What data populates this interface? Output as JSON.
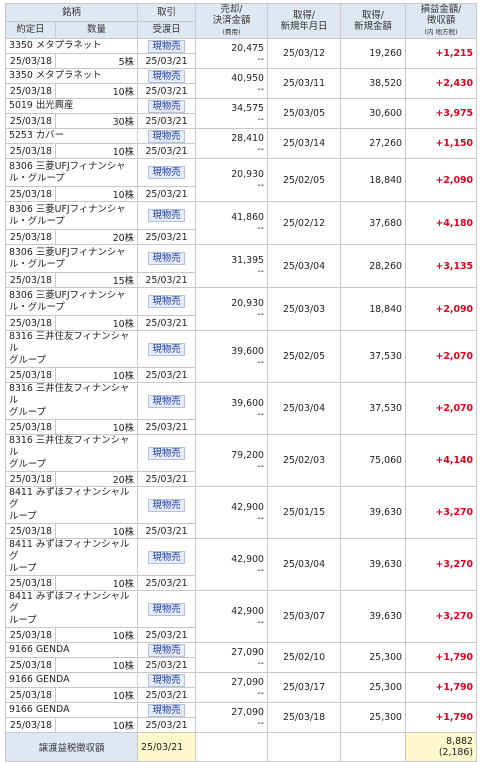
{
  "header": {
    "stock": "銘柄",
    "contract_date": "約定日",
    "qty": "数量",
    "trade_type": "取引",
    "settle_date": "受渡日",
    "sale_amount_1": "売却/",
    "sale_amount_2": "決済金額",
    "sale_amount_3": "(費用)",
    "acq_date_1": "取得/",
    "acq_date_2": "新規年月日",
    "acq_amount_1": "取得/",
    "acq_amount_2": "新規金額",
    "pl_1": "損益金額/",
    "pl_2": "徴収額",
    "pl_3": "(内 地方税)"
  },
  "rows": [
    {
      "name": "3350 メタプラネット",
      "contract_date": "25/03/18",
      "qty": "5株",
      "trade": "現物売",
      "settle_date": "25/03/21",
      "sale": "20,475",
      "cost": "--",
      "acq_date": "25/03/12",
      "acq_amount": "19,260",
      "pl": "+1,215"
    },
    {
      "name": "3350 メタプラネット",
      "contract_date": "25/03/18",
      "qty": "10株",
      "trade": "現物売",
      "settle_date": "25/03/21",
      "sale": "40,950",
      "cost": "--",
      "acq_date": "25/03/11",
      "acq_amount": "38,520",
      "pl": "+2,430"
    },
    {
      "name": "5019 出光興産",
      "contract_date": "25/03/18",
      "qty": "30株",
      "trade": "現物売",
      "settle_date": "25/03/21",
      "sale": "34,575",
      "cost": "--",
      "acq_date": "25/03/05",
      "acq_amount": "30,600",
      "pl": "+3,975"
    },
    {
      "name": "5253 カバー",
      "contract_date": "25/03/18",
      "qty": "10株",
      "trade": "現物売",
      "settle_date": "25/03/21",
      "sale": "28,410",
      "cost": "--",
      "acq_date": "25/03/14",
      "acq_amount": "27,260",
      "pl": "+1,150"
    },
    {
      "name": "8306 三菱UFJフィナンシャ",
      "name2": "ル・グループ",
      "contract_date": "25/03/18",
      "qty": "10株",
      "trade": "現物売",
      "settle_date": "25/03/21",
      "sale": "20,930",
      "cost": "--",
      "acq_date": "25/02/05",
      "acq_amount": "18,840",
      "pl": "+2,090"
    },
    {
      "name": "8306 三菱UFJフィナンシャ",
      "name2": "ル・グループ",
      "contract_date": "25/03/18",
      "qty": "20株",
      "trade": "現物売",
      "settle_date": "25/03/21",
      "sale": "41,860",
      "cost": "--",
      "acq_date": "25/02/12",
      "acq_amount": "37,680",
      "pl": "+4,180"
    },
    {
      "name": "8306 三菱UFJフィナンシャ",
      "name2": "ル・グループ",
      "contract_date": "25/03/18",
      "qty": "15株",
      "trade": "現物売",
      "settle_date": "25/03/21",
      "sale": "31,395",
      "cost": "--",
      "acq_date": "25/03/04",
      "acq_amount": "28,260",
      "pl": "+3,135"
    },
    {
      "name": "8306 三菱UFJフィナンシャ",
      "name2": "ル・グループ",
      "contract_date": "25/03/18",
      "qty": "10株",
      "trade": "現物売",
      "settle_date": "25/03/21",
      "sale": "20,930",
      "cost": "--",
      "acq_date": "25/03/03",
      "acq_amount": "18,840",
      "pl": "+2,090"
    },
    {
      "name": "8316 三井住友フィナンシャル",
      "name2": "グループ",
      "contract_date": "25/03/18",
      "qty": "10株",
      "trade": "現物売",
      "settle_date": "25/03/21",
      "sale": "39,600",
      "cost": "--",
      "acq_date": "25/02/05",
      "acq_amount": "37,530",
      "pl": "+2,070"
    },
    {
      "name": "8316 三井住友フィナンシャル",
      "name2": "グループ",
      "contract_date": "25/03/18",
      "qty": "10株",
      "trade": "現物売",
      "settle_date": "25/03/21",
      "sale": "39,600",
      "cost": "--",
      "acq_date": "25/03/04",
      "acq_amount": "37,530",
      "pl": "+2,070"
    },
    {
      "name": "8316 三井住友フィナンシャル",
      "name2": "グループ",
      "contract_date": "25/03/18",
      "qty": "20株",
      "trade": "現物売",
      "settle_date": "25/03/21",
      "sale": "79,200",
      "cost": "--",
      "acq_date": "25/02/03",
      "acq_amount": "75,060",
      "pl": "+4,140"
    },
    {
      "name": "8411 みずほフィナンシャルグ",
      "name2": "ループ",
      "contract_date": "25/03/18",
      "qty": "10株",
      "trade": "現物売",
      "settle_date": "25/03/21",
      "sale": "42,900",
      "cost": "--",
      "acq_date": "25/01/15",
      "acq_amount": "39,630",
      "pl": "+3,270"
    },
    {
      "name": "8411 みずほフィナンシャルグ",
      "name2": "ループ",
      "contract_date": "25/03/18",
      "qty": "10株",
      "trade": "現物売",
      "settle_date": "25/03/21",
      "sale": "42,900",
      "cost": "--",
      "acq_date": "25/03/04",
      "acq_amount": "39,630",
      "pl": "+3,270"
    },
    {
      "name": "8411 みずほフィナンシャルグ",
      "name2": "ループ",
      "contract_date": "25/03/18",
      "qty": "10株",
      "trade": "現物売",
      "settle_date": "25/03/21",
      "sale": "42,900",
      "cost": "--",
      "acq_date": "25/03/07",
      "acq_amount": "39,630",
      "pl": "+3,270"
    },
    {
      "name": "9166 GENDA",
      "contract_date": "25/03/18",
      "qty": "10株",
      "trade": "現物売",
      "settle_date": "25/03/21",
      "sale": "27,090",
      "cost": "--",
      "acq_date": "25/02/10",
      "acq_amount": "25,300",
      "pl": "+1,790"
    },
    {
      "name": "9166 GENDA",
      "contract_date": "25/03/18",
      "qty": "10株",
      "trade": "現物売",
      "settle_date": "25/03/21",
      "sale": "27,090",
      "cost": "--",
      "acq_date": "25/03/17",
      "acq_amount": "25,300",
      "pl": "+1,790"
    },
    {
      "name": "9166 GENDA",
      "contract_date": "25/03/18",
      "qty": "10株",
      "trade": "現物売",
      "settle_date": "25/03/21",
      "sale": "27,090",
      "cost": "--",
      "acq_date": "25/03/18",
      "acq_amount": "25,300",
      "pl": "+1,790"
    }
  ],
  "footer": {
    "label": "譲渡益税徴収額",
    "date": "25/03/21",
    "amount": "8,882",
    "local": "(2,186)"
  }
}
